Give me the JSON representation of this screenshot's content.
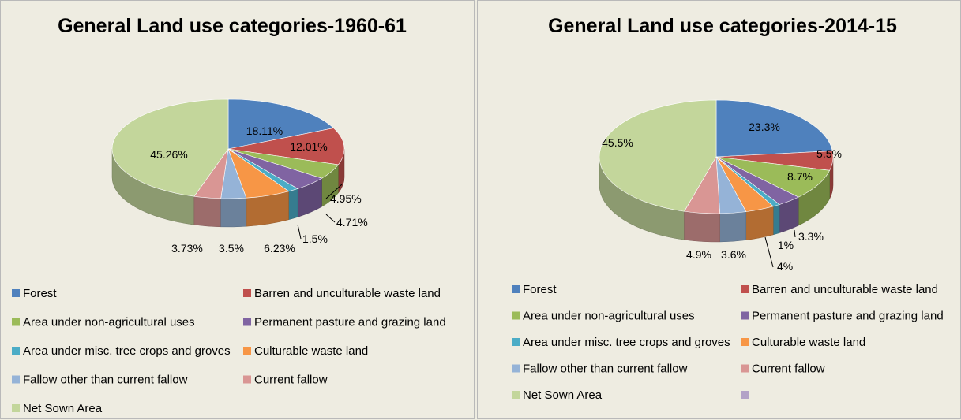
{
  "chart_data": [
    {
      "type": "pie",
      "title": "General Land use categories-1960-61",
      "categories": [
        "Forest",
        "Barren and unculturable waste land",
        "Area under non-agricultural uses",
        "Permanent pasture and grazing land",
        "Area under misc. tree crops and groves",
        "Culturable waste land",
        "Fallow other than current fallow",
        "Current fallow",
        "Net Sown Area"
      ],
      "values": [
        18.11,
        12.01,
        4.95,
        4.71,
        1.5,
        6.23,
        3.5,
        3.73,
        45.26
      ],
      "labels": [
        "18.11%",
        "12.01%",
        "4.95%",
        "4.71%",
        "1.5%",
        "6.23%",
        "3.5%",
        "3.73%",
        "45.26%"
      ],
      "legend": [
        "Forest",
        "Barren and unculturable waste land",
        "Area under non-agricultural uses",
        "Permanent pasture and grazing land",
        "Area under misc. tree crops and groves",
        "Culturable waste land",
        "Fallow other than current fallow",
        "Current fallow",
        "Net Sown Area"
      ],
      "legend_placement": "bottom",
      "style": "3d-pie"
    },
    {
      "type": "pie",
      "title": "General Land use categories-2014-15",
      "categories": [
        "Forest",
        "Barren and unculturable waste land",
        "Area under non-agricultural uses",
        "Permanent pasture and grazing land",
        "Area under misc. tree crops and groves",
        "Culturable waste land",
        "Fallow other than current fallow",
        "Current fallow",
        "Net Sown Area",
        ""
      ],
      "values": [
        23.3,
        5.5,
        8.7,
        3.3,
        1,
        4,
        3.6,
        4.9,
        45.5,
        0
      ],
      "labels": [
        "23.3%",
        "5.5%",
        "8.7%",
        "3.3%",
        "1%",
        "4%",
        "3.6%",
        "4.9%",
        "45.5%",
        ""
      ],
      "legend": [
        "Forest",
        "Barren and unculturable waste land",
        "Area under non-agricultural uses",
        "Permanent pasture and grazing land",
        "Area under misc. tree crops and groves",
        "Culturable waste land",
        "Fallow other than current fallow",
        "Current fallow",
        "Net Sown Area",
        ""
      ],
      "legend_placement": "bottom",
      "style": "3d-pie"
    }
  ],
  "colors": [
    "#4f81bd",
    "#c0504d",
    "#9bbb59",
    "#8064a2",
    "#4bacc6",
    "#f79646",
    "#95b3d7",
    "#d99694",
    "#c3d69b",
    "#b3a2c7"
  ]
}
